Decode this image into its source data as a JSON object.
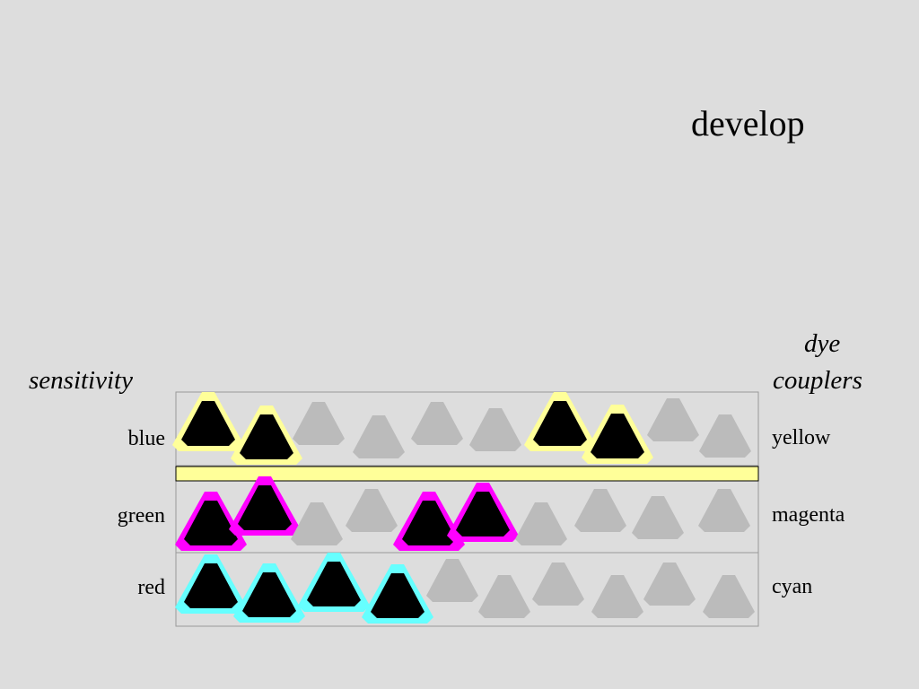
{
  "title": "develop",
  "left_header": "sensitivity",
  "right_header_line1": "dye",
  "right_header_line2": "couplers",
  "layers": [
    {
      "sensitivity": "blue",
      "dye": "yellow",
      "color": "#ffff99",
      "developed": [
        true,
        true,
        false,
        false,
        false,
        false,
        true,
        true,
        false,
        false
      ]
    },
    {
      "sensitivity": "green",
      "dye": "magenta",
      "color": "#ff00ff",
      "developed": [
        true,
        true,
        false,
        false,
        true,
        true,
        false,
        false,
        false,
        false
      ]
    },
    {
      "sensitivity": "red",
      "dye": "cyan",
      "color": "#66ffff",
      "developed": [
        true,
        true,
        true,
        true,
        false,
        false,
        false,
        false,
        false,
        false
      ]
    }
  ],
  "filter_color": "#ffff99",
  "undeveloped_color": "#bbbbbb",
  "grain_color": "#000000"
}
